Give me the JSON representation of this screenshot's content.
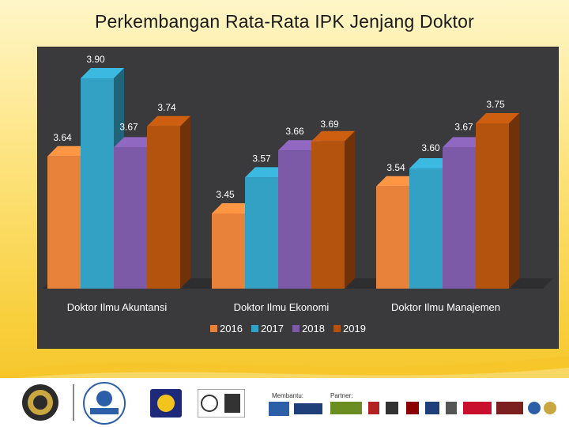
{
  "title": "Perkembangan Rata-Rata IPK Jenjang Doktor",
  "colors": {
    "s2016": "#e8823a",
    "s2017": "#33a1c4",
    "s2018": "#7d5aa8",
    "s2019": "#b4530e",
    "panel": "#3a3a3c"
  },
  "chart_data": {
    "type": "bar",
    "title": "Perkembangan Rata-Rata IPK Jenjang Doktor",
    "categories": [
      "Doktor Ilmu Akuntansi",
      "Doktor Ilmu Ekonomi",
      "Doktor Ilmu Manajemen"
    ],
    "series": [
      {
        "name": "2016",
        "values": [
          3.64,
          3.45,
          3.54
        ]
      },
      {
        "name": "2017",
        "values": [
          3.9,
          3.57,
          3.6
        ]
      },
      {
        "name": "2018",
        "values": [
          3.67,
          3.66,
          3.67
        ]
      },
      {
        "name": "2019",
        "values": [
          3.74,
          3.69,
          3.75
        ]
      }
    ],
    "value_labels": [
      [
        "3.64",
        "3.90",
        "3.67",
        "3.74"
      ],
      [
        "3.45",
        "3.57",
        "3.66",
        "3.69"
      ],
      [
        "3.54",
        "3.60",
        "3.67",
        "3.75"
      ]
    ],
    "ylim": [
      3.2,
      3.95
    ],
    "grid": false,
    "legend": "bottom",
    "xlabel": "",
    "ylabel": ""
  },
  "footer": {
    "supported_by": "Membantu:",
    "partner": "Partner:"
  }
}
